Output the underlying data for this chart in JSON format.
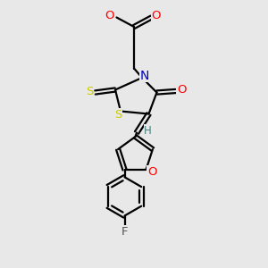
{
  "background_color": "#e8e8e8",
  "atom_colors": {
    "C": "#000000",
    "N": "#0000cc",
    "O": "#ff0000",
    "S": "#cccc00",
    "F": "#555555",
    "H": "#408080"
  },
  "bond_color": "#000000",
  "figsize": [
    3.0,
    3.0
  ],
  "dpi": 100
}
